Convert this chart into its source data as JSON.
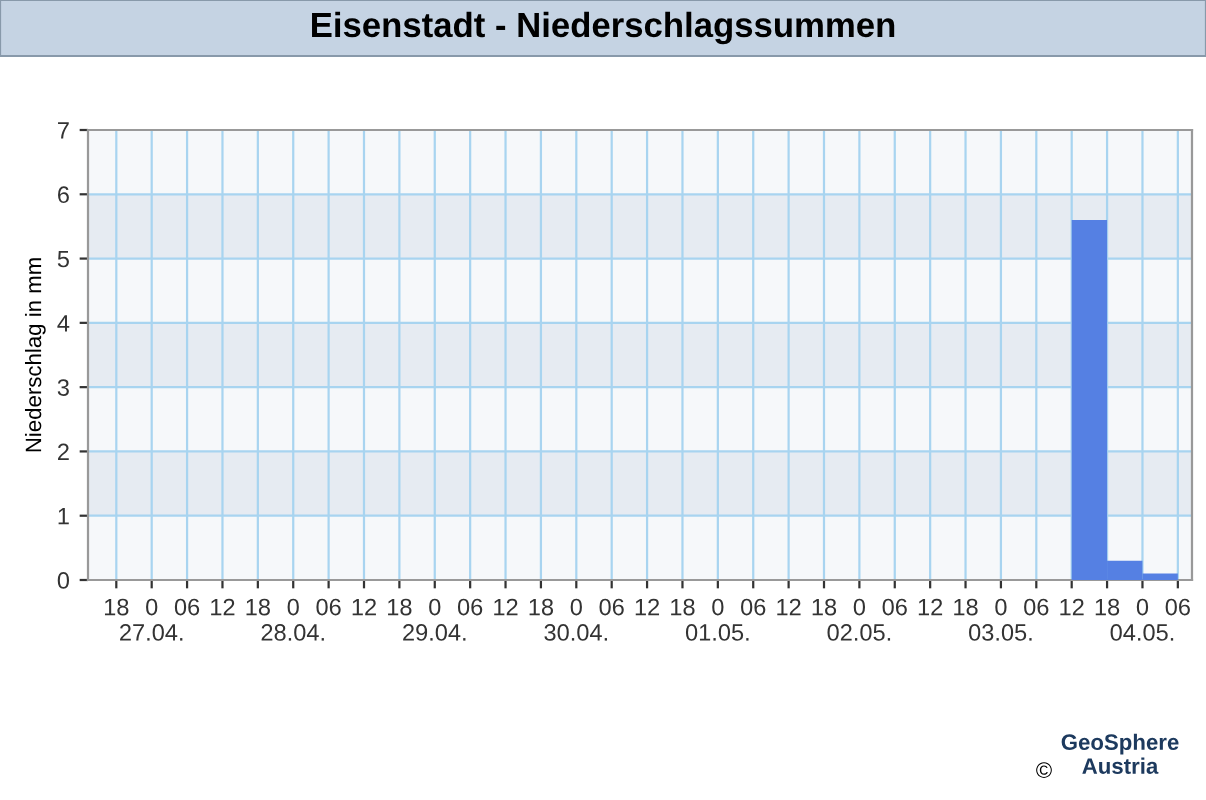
{
  "chart_data": {
    "type": "bar",
    "title": "Eisenstadt - Niederschlagssummen",
    "ylabel": "Niederschlag in mm",
    "categories": [
      "18",
      "0\n27.04.",
      "06",
      "12",
      "18",
      "0\n28.04.",
      "06",
      "12",
      "18",
      "0\n29.04.",
      "06",
      "12",
      "18",
      "0\n30.04.",
      "06",
      "12",
      "18",
      "0\n01.05.",
      "06",
      "12",
      "18",
      "0\n02.05.",
      "06",
      "12",
      "18",
      "0\n03.05.",
      "06",
      "12",
      "18",
      "0\n04.05.",
      "06"
    ],
    "values": [
      null,
      null,
      null,
      null,
      null,
      null,
      null,
      null,
      null,
      null,
      null,
      null,
      null,
      null,
      null,
      null,
      null,
      null,
      null,
      null,
      null,
      null,
      null,
      null,
      null,
      null,
      null,
      5.6,
      0.3,
      0.1,
      null
    ],
    "color": "#5580e3",
    "ylim": [
      0,
      7
    ],
    "yticks": [
      0,
      1,
      2,
      3,
      4,
      5,
      6,
      7
    ],
    "grid": true,
    "bands": [
      {
        "axis": "y",
        "from": 1,
        "to": 2,
        "color": "#e6ebf2"
      },
      {
        "axis": "y",
        "from": 3,
        "to": 4,
        "color": "#e6ebf2"
      },
      {
        "axis": "y",
        "from": 5,
        "to": 6,
        "color": "#e6ebf2"
      }
    ],
    "annotations": [
      "GeoSphere\nAustria",
      "©"
    ]
  }
}
